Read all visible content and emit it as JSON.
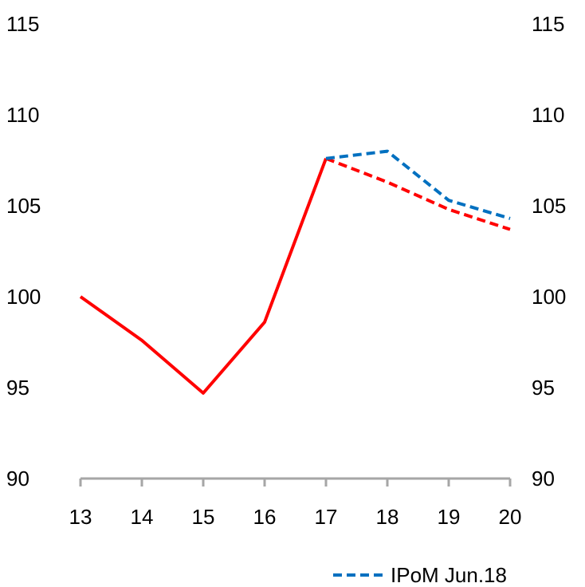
{
  "chart_data": {
    "type": "line",
    "title": "",
    "xlabel": "",
    "ylabel": "",
    "categories": [
      "13",
      "14",
      "15",
      "16",
      "17",
      "18",
      "19",
      "20"
    ],
    "ylim": [
      90,
      115
    ],
    "yticks": [
      "90",
      "95",
      "100",
      "105",
      "110",
      "115"
    ],
    "y2ticks": [
      "90",
      "95",
      "100",
      "105",
      "110",
      "115"
    ],
    "grid": false,
    "legend_position": "bottom-right",
    "series": [
      {
        "color": "#ff0000",
        "style": "solid",
        "x": [
          "13",
          "14",
          "15",
          "16",
          "17"
        ],
        "values": [
          100.0,
          97.6,
          94.7,
          98.6,
          107.6
        ]
      },
      {
        "color": "#ff0000",
        "style": "dashed",
        "x": [
          "17",
          "18",
          "19",
          "20"
        ],
        "values": [
          107.6,
          106.3,
          104.8,
          103.7
        ]
      },
      {
        "name": "IPoM Jun.18",
        "color": "#0070c0",
        "style": "dashed",
        "x": [
          "17",
          "18",
          "19",
          "20"
        ],
        "values": [
          107.6,
          108.0,
          105.3,
          104.3
        ]
      }
    ]
  }
}
